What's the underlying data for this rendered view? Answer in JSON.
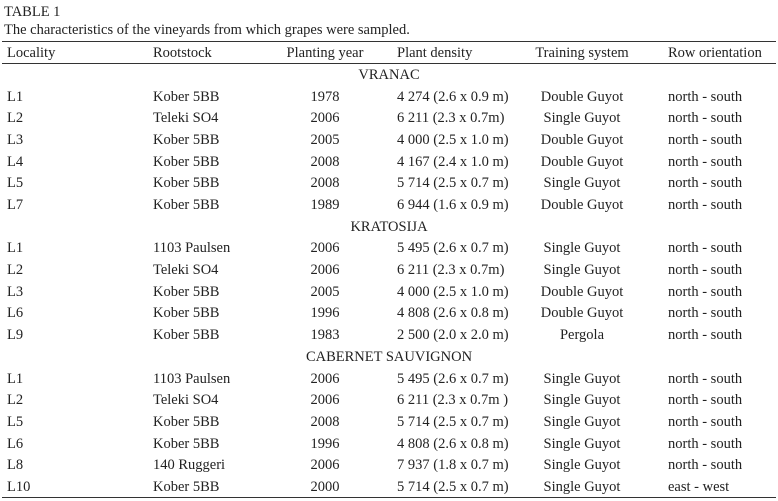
{
  "table": {
    "label": "TABLE 1",
    "caption": "The characteristics of the vineyards from which grapes were sampled.",
    "columns": [
      "Locality",
      "Rootstock",
      "Planting year",
      "Plant density",
      "Training system",
      "Row orientation"
    ],
    "groups": [
      {
        "name": "VRANAC",
        "rows": [
          [
            "L1",
            "Kober 5BB",
            "1978",
            "4 274 (2.6 x 0.9 m)",
            "Double Guyot",
            "north - south"
          ],
          [
            "L2",
            "Teleki SO4",
            "2006",
            "6 211 (2.3 x 0.7m)",
            "Single Guyot",
            "north - south"
          ],
          [
            "L3",
            "Kober 5BB",
            "2005",
            "4 000 (2.5 x 1.0 m)",
            "Double Guyot",
            "north - south"
          ],
          [
            "L4",
            "Kober 5BB",
            "2008",
            "4 167 (2.4 x 1.0 m)",
            "Double Guyot",
            "north - south"
          ],
          [
            "L5",
            "Kober 5BB",
            "2008",
            "5 714 (2.5 x 0.7 m)",
            "Single Guyot",
            "north - south"
          ],
          [
            "L7",
            "Kober 5BB",
            "1989",
            "6 944 (1.6 x 0.9 m)",
            "Double Guyot",
            "north - south"
          ]
        ]
      },
      {
        "name": "KRATOSIJA",
        "rows": [
          [
            "L1",
            "1103 Paulsen",
            "2006",
            "5 495 (2.6 x 0.7 m)",
            "Single Guyot",
            "north - south"
          ],
          [
            "L2",
            "Teleki SO4",
            "2006",
            "6 211 (2.3 x 0.7m)",
            "Single Guyot",
            "north - south"
          ],
          [
            "L3",
            "Kober 5BB",
            "2005",
            "4 000 (2.5 x 1.0 m)",
            "Double Guyot",
            "north - south"
          ],
          [
            "L6",
            "Kober 5BB",
            "1996",
            "4 808 (2.6 x 0.8 m)",
            "Double Guyot",
            "north - south"
          ],
          [
            "L9",
            "Kober 5BB",
            "1983",
            "2 500 (2.0 x 2.0 m)",
            "Pergola",
            "north - south"
          ]
        ]
      },
      {
        "name": "CABERNET SAUVIGNON",
        "rows": [
          [
            "L1",
            "1103 Paulsen",
            "2006",
            "5 495 (2.6 x 0.7 m)",
            "Single Guyot",
            "north - south"
          ],
          [
            "L2",
            "Teleki SO4",
            "2006",
            "6 211 (2.3 x 0.7m )",
            "Single Guyot",
            "north - south"
          ],
          [
            "L5",
            "Kober 5BB",
            "2008",
            "5 714 (2.5 x 0.7 m)",
            "Single Guyot",
            "north - south"
          ],
          [
            "L6",
            "Kober 5BB",
            "1996",
            "4 808 (2.6 x 0.8 m)",
            "Single Guyot",
            "north - south"
          ],
          [
            "L8",
            "140 Ruggeri",
            "2006",
            "7 937 (1.8 x 0.7 m)",
            "Single Guyot",
            "north - south"
          ],
          [
            "L10",
            "Kober 5BB",
            "2000",
            "5 714 (2.5 x 0.7 m)",
            "Single Guyot",
            "east - west"
          ]
        ]
      }
    ]
  }
}
